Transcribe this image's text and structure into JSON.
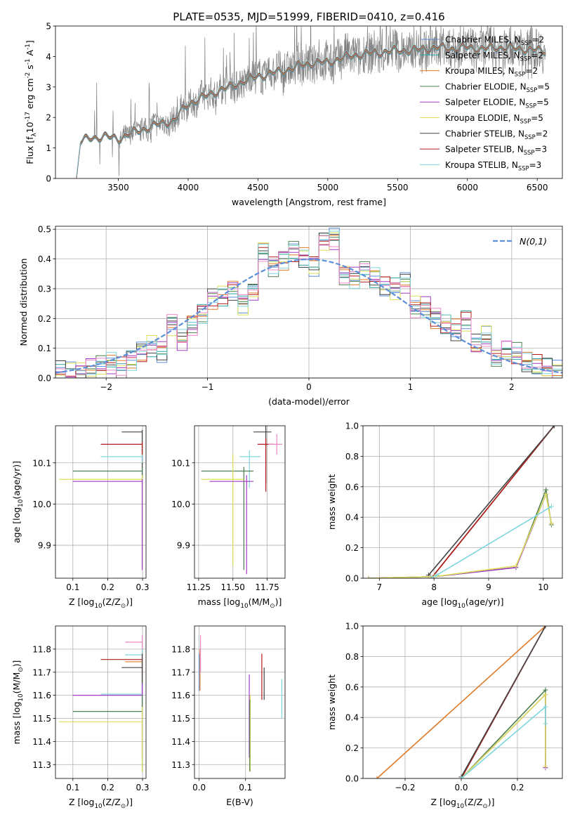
{
  "colors": {
    "chabrier_miles": "#5b8fd9",
    "salpeter_miles": "#2ca2a2",
    "kroupa_miles": "#e07b28",
    "chabrier_elodie": "#4f7f4f",
    "salpeter_elodie": "#a43bc6",
    "kroupa_elodie": "#dde05a",
    "chabrier_stelib": "#444444",
    "salpeter_stelib": "#b31b1b",
    "kroupa_stelib": "#7fd6e0",
    "pink": "#ee88c8",
    "gauss": "#5b8fd9",
    "data": "#808080"
  },
  "chart_data": [
    {
      "id": "spectrum",
      "type": "line",
      "title": "PLATE=0535, MJD=51999, FIBERID=0410, z=0.416",
      "xlabel": "wavelength [Angstrom, rest frame]",
      "ylabel": "Flux [f$_\\lambda$10$^{-17}$ erg cm$^{-2}$ s$^{-1}$ A$^{-1}$]",
      "xlim": [
        3050,
        6680
      ],
      "ylim": [
        0,
        5
      ],
      "xticks": [
        3500,
        4000,
        4500,
        5000,
        5500,
        6000,
        6500
      ],
      "yticks": [
        0,
        1,
        2,
        3,
        4,
        5
      ],
      "legend_position": "top-right",
      "continuum": {
        "x": [
          3200,
          3230,
          3300,
          3400,
          3500,
          3600,
          3700,
          3800,
          3900,
          3950,
          4000,
          4100,
          4200,
          4300,
          4400,
          4500,
          4600,
          4700,
          4800,
          4900,
          5000,
          5100,
          5200,
          5300,
          5400,
          5500,
          5600,
          5700,
          5800,
          5900,
          6000,
          6100,
          6200,
          6300,
          6400,
          6500,
          6560
        ],
        "y": [
          0.0,
          1.22,
          1.32,
          1.38,
          1.3,
          1.5,
          1.65,
          1.8,
          1.9,
          2.2,
          2.45,
          2.65,
          2.85,
          3.0,
          3.2,
          3.35,
          3.45,
          3.55,
          3.7,
          3.8,
          3.8,
          3.95,
          4.05,
          4.1,
          4.15,
          4.2,
          4.2,
          4.25,
          4.3,
          4.25,
          4.3,
          4.25,
          4.3,
          4.28,
          4.25,
          4.2,
          4.2
        ]
      },
      "series": [
        {
          "name": "Chabrier MILES, N$_{SSP}$=2",
          "color_key": "chabrier_miles"
        },
        {
          "name": "Salpeter MILES, N$_{SSP}$=2",
          "color_key": "salpeter_miles"
        },
        {
          "name": "Kroupa MILES, N$_{SSP}$=2",
          "color_key": "kroupa_miles"
        },
        {
          "name": "Chabrier ELODIE, N$_{SSP}$=5",
          "color_key": "chabrier_elodie"
        },
        {
          "name": "Salpeter ELODIE, N$_{SSP}$=5",
          "color_key": "salpeter_elodie"
        },
        {
          "name": "Kroupa ELODIE, N$_{SSP}$=5",
          "color_key": "kroupa_elodie"
        },
        {
          "name": "Chabrier STELIB, N$_{SSP}$=2",
          "color_key": "chabrier_stelib"
        },
        {
          "name": "Salpeter STELIB, N$_{SSP}$=3",
          "color_key": "salpeter_stelib"
        },
        {
          "name": "Kroupa STELIB, N$_{SSP}$=3",
          "color_key": "kroupa_stelib"
        }
      ]
    },
    {
      "id": "residuals",
      "type": "bar",
      "xlabel": "(data-model)/error",
      "ylabel": "Normed distribution",
      "xlim": [
        -2.5,
        2.5
      ],
      "ylim": [
        0,
        0.51
      ],
      "xticks": [
        -2,
        -1,
        0,
        1,
        2
      ],
      "yticks": [
        0.0,
        0.1,
        0.2,
        0.3,
        0.4,
        0.5
      ],
      "grid": true,
      "legend_position": "top-right",
      "gauss_label": "$\\mathcal{N}(0,1)$",
      "bin_width": 0.1,
      "hist_x": [
        -2.5,
        -2.4,
        -2.3,
        -2.2,
        -2.1,
        -2.0,
        -1.9,
        -1.8,
        -1.7,
        -1.6,
        -1.5,
        -1.4,
        -1.3,
        -1.2,
        -1.1,
        -1.0,
        -0.9,
        -0.8,
        -0.7,
        -0.6,
        -0.5,
        -0.4,
        -0.3,
        -0.2,
        -0.1,
        0.0,
        0.1,
        0.2,
        0.3,
        0.4,
        0.5,
        0.6,
        0.7,
        0.8,
        0.9,
        1.0,
        1.1,
        1.2,
        1.3,
        1.4,
        1.5,
        1.6,
        1.7,
        1.8,
        1.9,
        2.0,
        2.1,
        2.2,
        2.3,
        2.4
      ],
      "hist_y": [
        0.02,
        0.02,
        0.025,
        0.03,
        0.04,
        0.05,
        0.035,
        0.06,
        0.09,
        0.11,
        0.09,
        0.18,
        0.13,
        0.18,
        0.22,
        0.27,
        0.28,
        0.3,
        0.25,
        0.29,
        0.43,
        0.38,
        0.4,
        0.43,
        0.41,
        0.38,
        0.46,
        0.47,
        0.35,
        0.34,
        0.36,
        0.34,
        0.31,
        0.3,
        0.32,
        0.24,
        0.24,
        0.2,
        0.18,
        0.16,
        0.19,
        0.11,
        0.14,
        0.07,
        0.09,
        0.08,
        0.05,
        0.04,
        0.03,
        0.02
      ]
    },
    {
      "id": "age_Z",
      "type": "scatter",
      "xlabel": "Z [log$_{10}$(Z/Z$_\\odot$)]",
      "ylabel": "age  [log$_{10}$(age/yr)]",
      "xlim": [
        0.05,
        0.31
      ],
      "ylim": [
        9.82,
        10.19
      ],
      "xticks": [
        0.1,
        0.2,
        0.3
      ],
      "yticks": [
        9.9,
        10.0,
        10.1
      ],
      "grid": true
    },
    {
      "id": "age_mass",
      "type": "scatter",
      "xlabel": "mass [log$_{10}$(M/M$_\\odot$)]",
      "xlim": [
        11.22,
        11.88
      ],
      "ylim": [
        9.82,
        10.19
      ],
      "xticks": [
        11.25,
        11.5,
        11.75
      ],
      "yticks": [
        9.9,
        10.0,
        10.1
      ],
      "grid": true
    },
    {
      "id": "weight_age",
      "type": "line",
      "xlabel": "age  [log$_{10}$(age/yr)]",
      "ylabel": "mass weight",
      "xlim": [
        6.7,
        10.35
      ],
      "ylim": [
        0,
        1
      ],
      "xticks": [
        7,
        8,
        9,
        10
      ],
      "yticks": [
        0.0,
        0.2,
        0.4,
        0.6,
        0.8,
        1.0
      ],
      "grid": true
    },
    {
      "id": "mass_Z",
      "type": "scatter",
      "xlabel": "Z [log$_{10}$(Z/Z$_\\odot$)]",
      "ylabel": "mass [log$_{10}$(M/M$_\\odot$)]",
      "xlim": [
        0.05,
        0.31
      ],
      "ylim": [
        11.24,
        11.9
      ],
      "xticks": [
        0.1,
        0.2,
        0.3
      ],
      "yticks": [
        11.3,
        11.4,
        11.5,
        11.6,
        11.7,
        11.8
      ],
      "grid": true
    },
    {
      "id": "mass_ebv",
      "type": "scatter",
      "xlabel": "E(B-V)",
      "xlim": [
        -0.01,
        0.185
      ],
      "ylim": [
        11.24,
        11.9
      ],
      "xticks": [
        0.0,
        0.1
      ],
      "yticks": [
        11.3,
        11.4,
        11.5,
        11.6,
        11.7,
        11.8
      ],
      "grid": true
    },
    {
      "id": "weight_Z",
      "type": "line",
      "xlabel": "Z [log$_{10}$(Z/Z$_\\odot$)]",
      "ylabel": "mass weight",
      "xlim": [
        -0.35,
        0.36
      ],
      "ylim": [
        0,
        1
      ],
      "xticks": [
        -0.2,
        0.0,
        0.2
      ],
      "yticks": [
        0.0,
        0.2,
        0.4,
        0.6,
        0.8,
        1.0
      ],
      "grid": true
    }
  ],
  "age_Z_points": [
    {
      "c": "chabrier_stelib",
      "x0": 0.24,
      "x1": 0.3,
      "y": 10.175,
      "ylo": 10.05,
      "yhi": 10.18
    },
    {
      "c": "salpeter_stelib",
      "x0": 0.18,
      "x1": 0.3,
      "y": 10.145,
      "ylo": 10.1,
      "yhi": 10.15
    },
    {
      "c": "kroupa_stelib",
      "x0": 0.18,
      "x1": 0.3,
      "y": 10.115,
      "ylo": 10.1,
      "yhi": 10.12
    },
    {
      "c": "chabrier_elodie",
      "x0": 0.1,
      "x1": 0.3,
      "y": 10.08,
      "ylo": 10.06,
      "yhi": 10.09
    },
    {
      "c": "kroupa_elodie",
      "x0": 0.06,
      "x1": 0.3,
      "y": 10.06,
      "ylo": 9.84,
      "yhi": 10.07
    },
    {
      "c": "salpeter_elodie",
      "x0": 0.1,
      "x1": 0.3,
      "y": 10.055,
      "ylo": 9.84,
      "yhi": 10.06
    }
  ],
  "age_mass_points": [
    {
      "c": "chabrier_stelib",
      "m": 11.74,
      "mlo": 11.65,
      "mhi": 11.78,
      "y": 10.175,
      "ylo": 10.05,
      "yhi": 10.19
    },
    {
      "c": "salpeter_stelib",
      "m": 11.74,
      "mlo": 11.68,
      "mhi": 11.8,
      "y": 10.145,
      "ylo": 10.03,
      "yhi": 10.16
    },
    {
      "c": "pink",
      "m": 11.82,
      "mlo": 11.76,
      "mhi": 11.86,
      "y": 10.145,
      "ylo": 10.12,
      "yhi": 10.17
    },
    {
      "c": "kroupa_stelib",
      "m": 11.62,
      "mlo": 11.55,
      "mhi": 11.7,
      "y": 10.115,
      "ylo": 10.04,
      "yhi": 10.13
    },
    {
      "c": "chabrier_elodie",
      "m": 11.58,
      "mlo": 11.27,
      "mhi": 11.65,
      "y": 10.08,
      "ylo": 9.84,
      "yhi": 10.09
    },
    {
      "c": "kroupa_elodie",
      "m": 11.5,
      "mlo": 11.27,
      "mhi": 11.58,
      "y": 10.06,
      "ylo": 9.85,
      "yhi": 10.12
    },
    {
      "c": "salpeter_elodie",
      "m": 11.6,
      "mlo": 11.33,
      "mhi": 11.65,
      "y": 10.055,
      "ylo": 9.83,
      "yhi": 10.07
    }
  ],
  "weight_age_lines": [
    {
      "c": "chabrier_miles",
      "x": [
        7.95,
        10.2
      ],
      "y": [
        0.0,
        1.0
      ]
    },
    {
      "c": "salpeter_miles",
      "x": [
        7.95,
        10.2
      ],
      "y": [
        0.0,
        1.0
      ]
    },
    {
      "c": "kroupa_miles",
      "x": [
        7.95,
        10.2
      ],
      "y": [
        0.0,
        1.0
      ]
    },
    {
      "c": "salpeter_stelib",
      "x": [
        7.95,
        10.2
      ],
      "y": [
        0.0,
        1.0
      ]
    },
    {
      "c": "chabrier_stelib",
      "x": [
        7.9,
        10.2
      ],
      "y": [
        0.02,
        1.0
      ]
    },
    {
      "c": "chabrier_elodie",
      "x": [
        6.8,
        8.0,
        9.5,
        10.05,
        10.15
      ],
      "y": [
        0.0,
        0.01,
        0.07,
        0.58,
        0.35
      ]
    },
    {
      "c": "salpeter_elodie",
      "x": [
        6.8,
        8.0,
        9.5,
        10.05,
        10.15
      ],
      "y": [
        0.0,
        0.01,
        0.07,
        0.55,
        0.36
      ]
    },
    {
      "c": "kroupa_elodie",
      "x": [
        6.8,
        8.0,
        9.5,
        10.05,
        10.15
      ],
      "y": [
        0.0,
        0.01,
        0.08,
        0.55,
        0.36
      ]
    },
    {
      "c": "kroupa_stelib",
      "x": [
        7.95,
        8.05,
        10.15
      ],
      "y": [
        0.0,
        0.02,
        0.47
      ]
    }
  ],
  "mass_Z_points": [
    {
      "c": "pink",
      "x0": 0.25,
      "x1": 0.3,
      "y": 11.83,
      "ylo": 11.7,
      "yhi": 11.86
    },
    {
      "c": "salpeter_stelib",
      "x0": 0.18,
      "x1": 0.3,
      "y": 11.755,
      "ylo": 11.67,
      "yhi": 11.78
    },
    {
      "c": "kroupa_miles",
      "x0": 0.25,
      "x1": 0.3,
      "y": 11.745,
      "ylo": 11.62,
      "yhi": 11.8
    },
    {
      "c": "kroupa_stelib",
      "x0": 0.25,
      "x1": 0.3,
      "y": 11.775,
      "ylo": 11.65,
      "yhi": 11.8
    },
    {
      "c": "chabrier_stelib",
      "x0": 0.24,
      "x1": 0.3,
      "y": 11.72,
      "ylo": 11.6,
      "yhi": 11.78
    },
    {
      "c": "kroupa_stelib",
      "x0": 0.18,
      "x1": 0.3,
      "y": 11.605,
      "ylo": 11.55,
      "yhi": 11.65
    },
    {
      "c": "salpeter_elodie",
      "x0": 0.1,
      "x1": 0.3,
      "y": 11.6,
      "ylo": 11.33,
      "yhi": 11.65
    },
    {
      "c": "chabrier_elodie",
      "x0": 0.1,
      "x1": 0.3,
      "y": 11.53,
      "ylo": 11.27,
      "yhi": 11.6
    },
    {
      "c": "kroupa_elodie",
      "x0": 0.06,
      "x1": 0.3,
      "y": 11.485,
      "ylo": 11.27,
      "yhi": 11.55
    }
  ],
  "mass_ebv_points": [
    {
      "c": "chabrier_miles",
      "x": 0.0,
      "y": 11.74,
      "ylo": 11.62,
      "yhi": 11.78
    },
    {
      "c": "kroupa_miles",
      "x": 0.002,
      "y": 11.74,
      "ylo": 11.62,
      "yhi": 11.8
    },
    {
      "c": "pink",
      "x": 0.003,
      "y": 11.8,
      "ylo": 11.7,
      "yhi": 11.86
    },
    {
      "c": "salpeter_elodie",
      "x": 0.108,
      "y": 11.6,
      "ylo": 11.33,
      "yhi": 11.69
    },
    {
      "c": "kroupa_elodie",
      "x": 0.11,
      "y": 11.55,
      "ylo": 11.27,
      "yhi": 11.6
    },
    {
      "c": "chabrier_elodie",
      "x": 0.109,
      "y": 11.5,
      "ylo": 11.27,
      "yhi": 11.58
    },
    {
      "c": "salpeter_stelib",
      "x": 0.135,
      "y": 11.7,
      "ylo": 11.58,
      "yhi": 11.78
    },
    {
      "c": "chabrier_stelib",
      "x": 0.14,
      "y": 11.65,
      "ylo": 11.58,
      "yhi": 11.72
    },
    {
      "c": "kroupa_stelib",
      "x": 0.178,
      "y": 11.6,
      "ylo": 11.5,
      "yhi": 11.67
    }
  ],
  "weight_Z_lines": [
    {
      "c": "kroupa_miles",
      "x": [
        -0.3,
        0.3
      ],
      "y": [
        0.0,
        1.0
      ]
    },
    {
      "c": "salpeter_stelib",
      "x": [
        0.0,
        0.3
      ],
      "y": [
        0.0,
        1.0
      ]
    },
    {
      "c": "chabrier_stelib",
      "x": [
        0.0,
        0.3
      ],
      "y": [
        0.01,
        1.0
      ]
    },
    {
      "c": "chabrier_elodie",
      "x": [
        0.0,
        0.3,
        0.3
      ],
      "y": [
        0.0,
        0.58,
        0.07
      ]
    },
    {
      "c": "salpeter_elodie",
      "x": [
        0.0,
        0.3,
        0.3
      ],
      "y": [
        0.0,
        0.55,
        0.07
      ]
    },
    {
      "c": "kroupa_elodie",
      "x": [
        0.0,
        0.3,
        0.3
      ],
      "y": [
        0.0,
        0.55,
        0.08
      ]
    },
    {
      "c": "kroupa_stelib",
      "x": [
        0.0,
        0.3,
        0.3
      ],
      "y": [
        0.0,
        0.47,
        0.36
      ]
    }
  ]
}
